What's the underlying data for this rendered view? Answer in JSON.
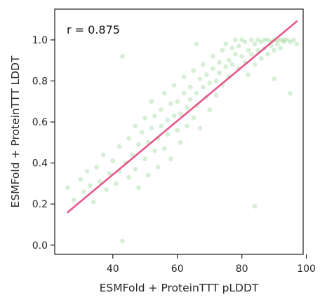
{
  "chart_data": {
    "type": "scatter",
    "xlabel": "ESMFold + ProteinTTT pLDDT",
    "ylabel": "ESMFold + ProteinTTT LDDT",
    "annotation": "r = 0.875",
    "xlim": [
      22,
      99
    ],
    "ylim": [
      -0.045,
      1.15
    ],
    "x_ticks": [
      40,
      60,
      80,
      100
    ],
    "y_ticks": [
      0.0,
      0.2,
      0.4,
      0.6,
      0.8,
      1.0
    ],
    "x_tick_labels": [
      "40",
      "60",
      "80",
      "100"
    ],
    "y_tick_labels": [
      "0.0",
      "0.2",
      "0.4",
      "0.6",
      "0.8",
      "1.0"
    ],
    "grid": false,
    "point_color": "#6cc46c",
    "point_alpha": 0.28,
    "line_color": "#e8578a",
    "fit_line": {
      "x": [
        26,
        97
      ],
      "y": [
        0.16,
        1.09
      ]
    },
    "series": [
      {
        "values": [
          [
            26,
            0.28
          ],
          [
            28,
            0.22
          ],
          [
            30,
            0.32
          ],
          [
            31,
            0.26
          ],
          [
            32,
            0.36
          ],
          [
            33,
            0.29
          ],
          [
            34,
            0.21
          ],
          [
            35,
            0.38
          ],
          [
            36,
            0.31
          ],
          [
            37,
            0.44
          ],
          [
            38,
            0.27
          ],
          [
            39,
            0.35
          ],
          [
            40,
            0.41
          ],
          [
            41,
            0.3
          ],
          [
            42,
            0.48
          ],
          [
            42,
            0.36
          ],
          [
            43,
            0.02
          ],
          [
            43,
            0.92
          ],
          [
            44,
            0.4
          ],
          [
            45,
            0.33
          ],
          [
            45,
            0.52
          ],
          [
            46,
            0.44
          ],
          [
            47,
            0.58
          ],
          [
            47,
            0.37
          ],
          [
            48,
            0.49
          ],
          [
            48,
            0.28
          ],
          [
            49,
            0.55
          ],
          [
            50,
            0.42
          ],
          [
            50,
            0.62
          ],
          [
            51,
            0.5
          ],
          [
            51,
            0.34
          ],
          [
            52,
            0.57
          ],
          [
            52,
            0.7
          ],
          [
            53,
            0.46
          ],
          [
            53,
            0.63
          ],
          [
            54,
            0.52
          ],
          [
            54,
            0.38
          ],
          [
            55,
            0.66
          ],
          [
            55,
            0.58
          ],
          [
            56,
            0.47
          ],
          [
            56,
            0.74
          ],
          [
            57,
            0.61
          ],
          [
            57,
            0.54
          ],
          [
            58,
            0.69
          ],
          [
            58,
            0.42
          ],
          [
            59,
            0.63
          ],
          [
            59,
            0.78
          ],
          [
            60,
            0.56
          ],
          [
            60,
            0.7
          ],
          [
            61,
            0.64
          ],
          [
            61,
            0.5
          ],
          [
            62,
            0.74
          ],
          [
            62,
            0.82
          ],
          [
            63,
            0.67
          ],
          [
            63,
            0.58
          ],
          [
            64,
            0.77
          ],
          [
            64,
            0.71
          ],
          [
            65,
            0.62
          ],
          [
            65,
            0.85
          ],
          [
            66,
            0.74
          ],
          [
            66,
            0.68
          ],
          [
            67,
            0.81
          ],
          [
            67,
            0.57
          ],
          [
            68,
            0.77
          ],
          [
            68,
            0.88
          ],
          [
            69,
            0.72
          ],
          [
            69,
            0.83
          ],
          [
            70,
            0.79
          ],
          [
            70,
            0.66
          ],
          [
            71,
            0.86
          ],
          [
            71,
            0.92
          ],
          [
            72,
            0.8
          ],
          [
            72,
            0.73
          ],
          [
            73,
            0.89
          ],
          [
            73,
            0.84
          ],
          [
            74,
            0.95
          ],
          [
            74,
            0.78
          ],
          [
            75,
            0.87
          ],
          [
            75,
            0.98
          ],
          [
            76,
            0.9
          ],
          [
            76,
            0.82
          ],
          [
            77,
            0.96
          ],
          [
            77,
            0.88
          ],
          [
            78,
            0.93
          ],
          [
            78,
            1.0
          ],
          [
            79,
            0.86
          ],
          [
            79,
            0.97
          ],
          [
            80,
            0.92
          ],
          [
            80,
            1.0
          ],
          [
            81,
            0.89
          ],
          [
            81,
            0.99
          ],
          [
            82,
            0.95
          ],
          [
            82,
            0.83
          ],
          [
            83,
            1.0
          ],
          [
            83,
            0.93
          ],
          [
            84,
            0.98
          ],
          [
            84,
            0.88
          ],
          [
            85,
            1.0
          ],
          [
            85,
            0.95
          ],
          [
            86,
            0.99
          ],
          [
            86,
            0.91
          ],
          [
            87,
            1.0
          ],
          [
            87,
            0.96
          ],
          [
            88,
            1.0
          ],
          [
            88,
            0.93
          ],
          [
            89,
            0.99
          ],
          [
            89,
            0.97
          ],
          [
            90,
            1.0
          ],
          [
            90,
            0.95
          ],
          [
            91,
            1.0
          ],
          [
            91,
            0.98
          ],
          [
            92,
            1.0
          ],
          [
            92,
            0.96
          ],
          [
            93,
            1.0
          ],
          [
            93,
            0.99
          ],
          [
            94,
            1.0
          ],
          [
            95,
            0.99
          ],
          [
            96,
            1.0
          ],
          [
            97,
            0.98
          ],
          [
            84,
            0.19
          ],
          [
            95,
            0.74
          ],
          [
            90,
            0.81
          ],
          [
            66,
            0.98
          ]
        ]
      }
    ]
  }
}
